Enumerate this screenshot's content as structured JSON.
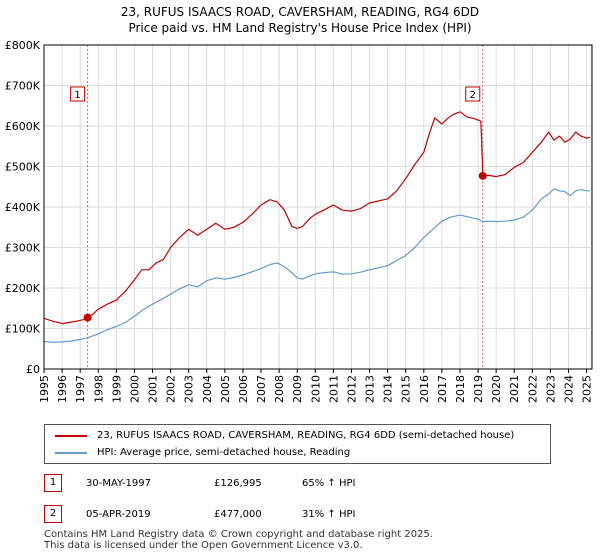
{
  "title": {
    "line1": "23, RUFUS ISAACS ROAD, CAVERSHAM, READING, RG4 6DD",
    "line2": "Price paid vs. HM Land Registry's House Price Index (HPI)"
  },
  "chart_data": {
    "type": "line",
    "ylim": [
      0,
      800000
    ],
    "xlim": [
      1995,
      2025.3
    ],
    "y_ticks": [
      {
        "value": 0,
        "label": "£0"
      },
      {
        "value": 100000,
        "label": "£100K"
      },
      {
        "value": 200000,
        "label": "£200K"
      },
      {
        "value": 300000,
        "label": "£300K"
      },
      {
        "value": 400000,
        "label": "£400K"
      },
      {
        "value": 500000,
        "label": "£500K"
      },
      {
        "value": 600000,
        "label": "£600K"
      },
      {
        "value": 700000,
        "label": "£700K"
      },
      {
        "value": 800000,
        "label": "£800K"
      }
    ],
    "x_ticks": [
      "1995",
      "1996",
      "1997",
      "1998",
      "1999",
      "2000",
      "2001",
      "2002",
      "2003",
      "2004",
      "2005",
      "2006",
      "2007",
      "2008",
      "2009",
      "2010",
      "2011",
      "2012",
      "2013",
      "2014",
      "2015",
      "2016",
      "2017",
      "2018",
      "2019",
      "2020",
      "2021",
      "2022",
      "2023",
      "2024",
      "2025"
    ],
    "grid": true,
    "colors": {
      "property": "#c00000",
      "hpi": "#6699cc",
      "marker": "#c00000",
      "grid": "#dddddd",
      "axis": "#000000"
    },
    "series": [
      {
        "name": "property",
        "x": [
          1995.0,
          1995.5,
          1996.0,
          1996.4,
          1996.8,
          1997.2,
          1997.41,
          1997.7,
          1998.0,
          1998.5,
          1999.0,
          1999.5,
          2000.0,
          2000.4,
          2000.8,
          2001.2,
          2001.6,
          2002.0,
          2002.5,
          2003.0,
          2003.5,
          2004.0,
          2004.5,
          2005.0,
          2005.5,
          2006.0,
          2006.5,
          2007.0,
          2007.5,
          2007.9,
          2008.3,
          2008.7,
          2009.0,
          2009.3,
          2009.7,
          2010.0,
          2010.5,
          2011.0,
          2011.5,
          2012.0,
          2012.5,
          2013.0,
          2013.5,
          2014.0,
          2014.5,
          2015.0,
          2015.5,
          2016.0,
          2016.3,
          2016.6,
          2017.0,
          2017.3,
          2017.6,
          2018.0,
          2018.4,
          2018.8,
          2019.15,
          2019.2,
          2019.26,
          2019.6,
          2020.0,
          2020.5,
          2021.0,
          2021.5,
          2022.0,
          2022.5,
          2022.9,
          2023.2,
          2023.5,
          2023.8,
          2024.1,
          2024.4,
          2024.7,
          2025.0,
          2025.2
        ],
        "values": [
          125000,
          118000,
          112000,
          115000,
          118000,
          122000,
          126995,
          135000,
          148000,
          160000,
          170000,
          192000,
          220000,
          245000,
          245000,
          262000,
          270000,
          300000,
          325000,
          345000,
          330000,
          345000,
          360000,
          345000,
          350000,
          362000,
          382000,
          405000,
          418000,
          412000,
          392000,
          352000,
          347000,
          352000,
          372000,
          382000,
          393000,
          405000,
          392000,
          390000,
          396000,
          410000,
          415000,
          420000,
          440000,
          470000,
          505000,
          535000,
          580000,
          620000,
          605000,
          618000,
          628000,
          635000,
          622000,
          618000,
          612000,
          560000,
          477000,
          478000,
          475000,
          480000,
          498000,
          510000,
          535000,
          560000,
          585000,
          565000,
          575000,
          560000,
          568000,
          585000,
          575000,
          570000,
          572000
        ]
      },
      {
        "name": "hpi",
        "x": [
          1995.0,
          1995.5,
          1996.0,
          1996.5,
          1997.0,
          1997.41,
          1998.0,
          1998.5,
          1999.0,
          1999.5,
          2000.0,
          2000.5,
          2001.0,
          2001.5,
          2002.0,
          2002.5,
          2003.0,
          2003.5,
          2004.0,
          2004.5,
          2005.0,
          2005.5,
          2006.0,
          2006.5,
          2007.0,
          2007.5,
          2007.9,
          2008.3,
          2008.7,
          2009.0,
          2009.3,
          2009.7,
          2010.0,
          2010.5,
          2011.0,
          2011.5,
          2012.0,
          2012.5,
          2013.0,
          2013.5,
          2014.0,
          2014.5,
          2015.0,
          2015.5,
          2016.0,
          2016.5,
          2017.0,
          2017.5,
          2018.0,
          2018.5,
          2019.0,
          2019.26,
          2019.7,
          2020.0,
          2020.5,
          2021.0,
          2021.5,
          2022.0,
          2022.5,
          2022.9,
          2023.2,
          2023.5,
          2023.8,
          2024.1,
          2024.4,
          2024.7,
          2025.0,
          2025.2
        ],
        "values": [
          68000,
          66000,
          67000,
          69000,
          73000,
          77000,
          87000,
          97000,
          105000,
          115000,
          130000,
          147000,
          160000,
          172000,
          185000,
          198000,
          208000,
          203000,
          218000,
          225000,
          222000,
          226000,
          232000,
          240000,
          248000,
          258000,
          262000,
          252000,
          238000,
          225000,
          222000,
          230000,
          235000,
          238000,
          240000,
          234000,
          235000,
          239000,
          245000,
          250000,
          255000,
          268000,
          280000,
          300000,
          325000,
          345000,
          365000,
          375000,
          380000,
          375000,
          370000,
          364000,
          365000,
          364000,
          365000,
          368000,
          375000,
          392000,
          420000,
          432000,
          445000,
          440000,
          438000,
          428000,
          440000,
          443000,
          440000,
          440000
        ]
      }
    ],
    "annotations": [
      {
        "id": "1",
        "x": 1997.41,
        "value": 126995
      },
      {
        "id": "2",
        "x": 2019.26,
        "value": 477000
      }
    ]
  },
  "legend": {
    "property_label": "23, RUFUS ISAACS ROAD, CAVERSHAM, READING, RG4 6DD (semi-detached house)",
    "hpi_label": "HPI: Average price, semi-detached house, Reading"
  },
  "transactions": [
    {
      "id": "1",
      "date": "30-MAY-1997",
      "price": "£126,995",
      "hpi": "65% ↑ HPI"
    },
    {
      "id": "2",
      "date": "05-APR-2019",
      "price": "£477,000",
      "hpi": "31% ↑ HPI"
    }
  ],
  "footer": {
    "line1": "Contains HM Land Registry data © Crown copyright and database right 2025.",
    "line2": "This data is licensed under the Open Government Licence v3.0."
  }
}
